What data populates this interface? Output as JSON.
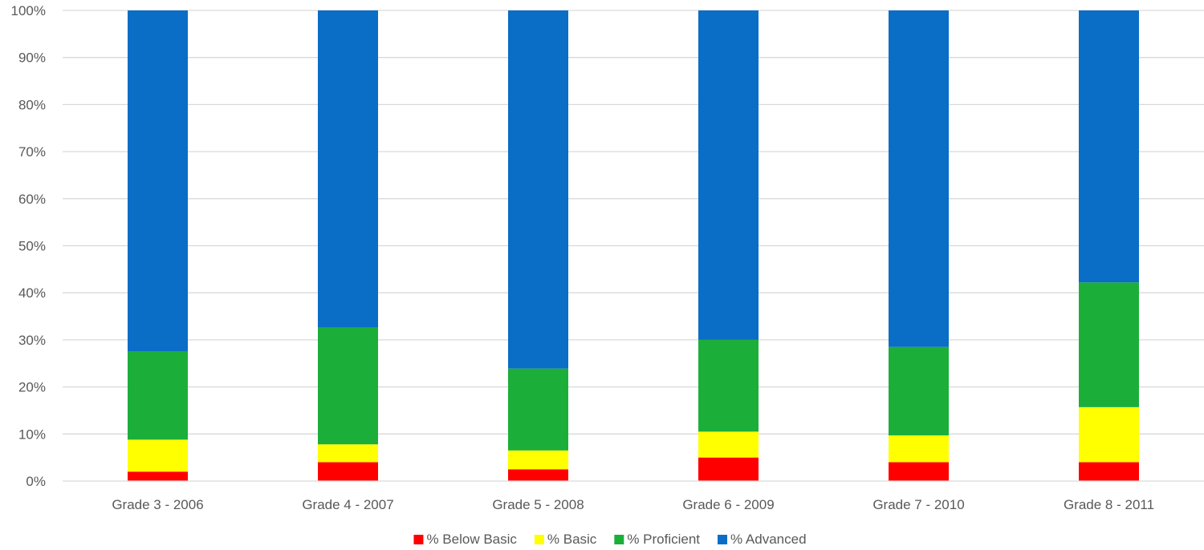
{
  "chart_data": {
    "type": "bar",
    "stacked": true,
    "percent": true,
    "categories": [
      "Grade 3 - 2006",
      "Grade 4 - 2007",
      "Grade 5 - 2008",
      "Grade 6 - 2009",
      "Grade 7 - 2010",
      "Grade 8 - 2011"
    ],
    "series": [
      {
        "name": "% Below Basic",
        "color": "#FF0000",
        "values": [
          2.0,
          4.0,
          2.5,
          5.0,
          4.0,
          4.0
        ]
      },
      {
        "name": "% Basic",
        "color": "#FFFF00",
        "values": [
          6.8,
          3.8,
          4.0,
          5.5,
          5.7,
          11.7
        ]
      },
      {
        "name": "% Proficient",
        "color": "#1BAF3A",
        "values": [
          18.8,
          24.8,
          17.4,
          19.5,
          18.8,
          26.5
        ]
      },
      {
        "name": "% Advanced",
        "color": "#0A6DC6",
        "values": [
          72.4,
          67.4,
          76.1,
          70.0,
          71.5,
          57.8
        ]
      }
    ],
    "yticks": [
      "0%",
      "10%",
      "20%",
      "30%",
      "40%",
      "50%",
      "60%",
      "70%",
      "80%",
      "90%",
      "100%"
    ],
    "ylim": [
      0,
      100
    ],
    "grid": true,
    "legend_position": "bottom",
    "title": "",
    "xlabel": "",
    "ylabel": ""
  }
}
